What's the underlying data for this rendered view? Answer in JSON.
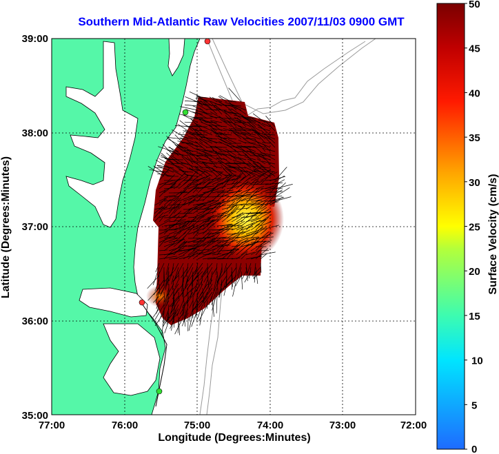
{
  "title": "Southern Mid-Atlantic Raw Velocities 2007/11/03 0900 GMT",
  "xlabel": "Longitude (Degrees:Minutes)",
  "ylabel": "Latitude (Degrees:Minutes)",
  "x_ticks": [
    "77:00",
    "76:00",
    "75:00",
    "74:00",
    "73:00",
    "72:00"
  ],
  "y_ticks": [
    "39:00",
    "38:00",
    "37:00",
    "36:00",
    "35:00"
  ],
  "colorbar": {
    "label": "Surface Velocity (cm/s)",
    "ticks": [
      "50",
      "45",
      "40",
      "35",
      "30",
      "25",
      "20",
      "15",
      "10",
      "5",
      "0"
    ],
    "min": 0,
    "max": 50
  },
  "colors": {
    "land": "#55f7a8",
    "ocean": "#ffffff",
    "title": "#0000ff",
    "high_velocity": "#8b0000",
    "low_velocity": "#ffff00",
    "grid": "#000000",
    "bathymetry": "#999999"
  },
  "stations": [
    {
      "color": "#ff3333",
      "lon": -74.83,
      "lat": 38.98
    },
    {
      "color": "#33dd33",
      "lon": -75.09,
      "lat": 38.22
    },
    {
      "color": "#ff3333",
      "lon": -75.74,
      "lat": 36.17
    },
    {
      "color": "#33dd33",
      "lon": -75.47,
      "lat": 35.23
    }
  ],
  "grid": true,
  "projection": "lon/lat, 77W to 72W, 35N to 39N"
}
